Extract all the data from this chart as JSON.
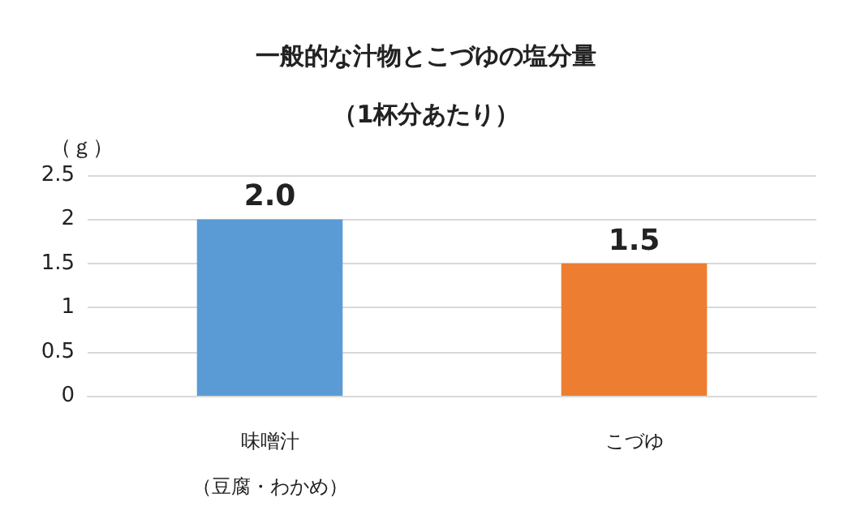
{
  "chart_data": {
    "type": "bar",
    "title": "一般的な汁物とこづゆの塩分量",
    "subtitle": "（1杯分あたり）",
    "ylabel": "（ｇ）",
    "categories": [
      "味噌汁（豆腐・わかめ）",
      "こづゆ"
    ],
    "values": [
      2.0,
      1.5
    ],
    "colors": [
      "#5b9bd5",
      "#ed7d31"
    ],
    "value_labels": [
      "2.0",
      "1.5"
    ],
    "ylim": [
      0,
      2.5
    ],
    "yticks": [
      0,
      0.5,
      1,
      1.5,
      2,
      2.5
    ],
    "grid": "y"
  }
}
